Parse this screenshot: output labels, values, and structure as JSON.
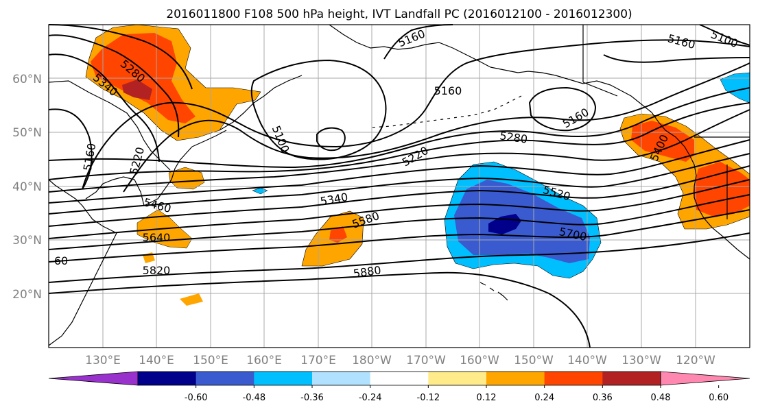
{
  "title": "2016011800 F108 500 hPa height, IVT Landfall PC (2016012100 - 2016012300)",
  "lat_labels": [
    "60°N",
    "50°N",
    "40°N",
    "30°N",
    "20°N"
  ],
  "lon_labels": [
    "130°E",
    "140°E",
    "150°E",
    "160°E",
    "170°E",
    "180°W",
    "170°W",
    "160°W",
    "150°W",
    "140°W",
    "130°W",
    "120°W"
  ],
  "colorbar": {
    "colors": [
      "#9932cc",
      "#00008b",
      "#3a5bd0",
      "#00bfff",
      "#b0e2ff",
      "#ffffff",
      "#ffeb8a",
      "#ffa500",
      "#ff4500",
      "#b22222",
      "#ff88b0"
    ],
    "tick_labels": [
      "-0.60",
      "-0.48",
      "-0.36",
      "-0.24",
      "-0.12",
      "0.12",
      "0.24",
      "0.36",
      "0.48",
      "0.60"
    ]
  },
  "contour_labels": [
    "5160",
    "5100",
    "5160",
    "5280",
    "5340",
    "5160",
    "5220",
    "5100",
    "5160",
    "5220",
    "5280",
    "5160",
    "5400",
    "5340",
    "5460",
    "5520",
    "5580",
    "5640",
    "5700",
    "60",
    "5820",
    "5880"
  ]
}
